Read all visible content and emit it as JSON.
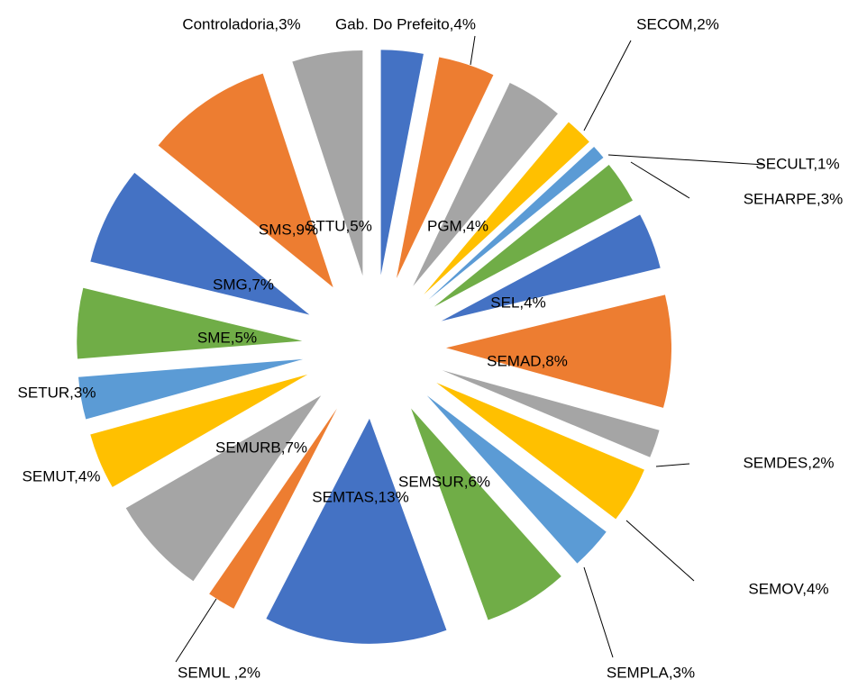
{
  "chart_data": {
    "type": "pie",
    "exploded": true,
    "value_labels": [
      "Controladoria,3%",
      "Gab. Do Prefeito,4%",
      "PGM,4%",
      "SECOM,2%",
      "SECULT,1%",
      "SEHARPE,3%",
      "SEL,4%",
      "SEMAD,8%",
      "SEMDES,2%",
      "SEMOV,4%",
      "SEMPLA,3%",
      "SEMSUR,6%",
      "SEMTAS,13%",
      "SEMUL ,2%",
      "SEMURB,7%",
      "SEMUT,4%",
      "SETUR,3%",
      "SME,5%",
      "SMG,7%",
      "SMS,9%",
      "STTU,5%"
    ],
    "values": [
      3,
      4,
      4,
      2,
      1,
      3,
      4,
      8,
      2,
      4,
      3,
      6,
      13,
      2,
      7,
      4,
      3,
      5,
      7,
      9,
      5
    ],
    "colors": [
      "#4472c4",
      "#ed7d31",
      "#a5a5a5",
      "#ffc000",
      "#5b9bd5",
      "#70ad47",
      "#4472c4",
      "#ed7d31",
      "#a5a5a5",
      "#ffc000",
      "#5b9bd5",
      "#70ad47",
      "#4472c4",
      "#ed7d31",
      "#a5a5a5",
      "#ffc000",
      "#5b9bd5",
      "#70ad47",
      "#4472c4",
      "#ed7d31",
      "#a5a5a5"
    ]
  }
}
